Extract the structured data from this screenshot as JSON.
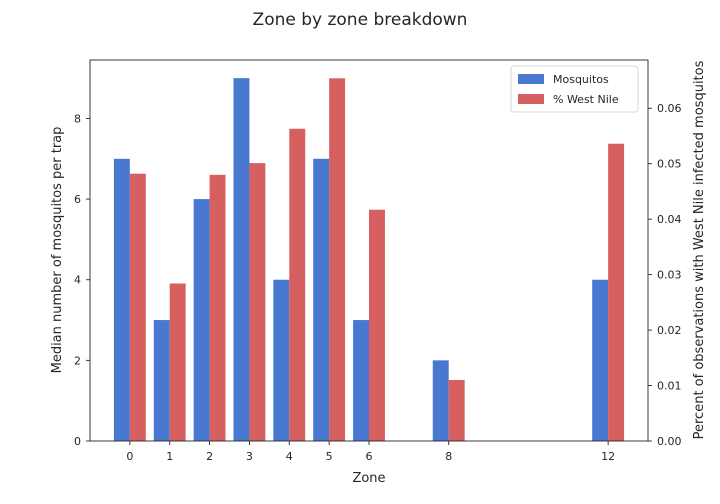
{
  "chart_data": {
    "type": "bar",
    "title": "Zone by zone breakdown",
    "xlabel": "Zone",
    "ylabel_left": "Median number of mosquitos per trap",
    "ylabel_right": "Percent of observations with West Nile infected mosquitos",
    "x": [
      0,
      1,
      2,
      3,
      4,
      5,
      6,
      8,
      12
    ],
    "x_ticks": [
      0,
      1,
      2,
      3,
      4,
      5,
      6,
      8,
      12
    ],
    "x_range": [
      -1.0,
      13.0
    ],
    "ylim_left": [
      0,
      9.45
    ],
    "yticks_left": [
      0,
      2,
      4,
      6,
      8
    ],
    "ylim_right": [
      0,
      0.0687
    ],
    "yticks_right": [
      0.0,
      0.01,
      0.02,
      0.03,
      0.04,
      0.05,
      0.06
    ],
    "legend_position": "top-right",
    "grid": false,
    "series": [
      {
        "name": "Mosquitos",
        "axis": "left",
        "color": "#4878d0",
        "values": [
          7,
          3,
          6,
          9,
          4,
          7,
          3,
          2,
          4
        ]
      },
      {
        "name": "% West Nile",
        "axis": "right",
        "color": "#d65f5f",
        "values": [
          0.0482,
          0.0284,
          0.048,
          0.0501,
          0.0563,
          0.0654,
          0.0417,
          0.011,
          0.0536
        ]
      }
    ]
  }
}
